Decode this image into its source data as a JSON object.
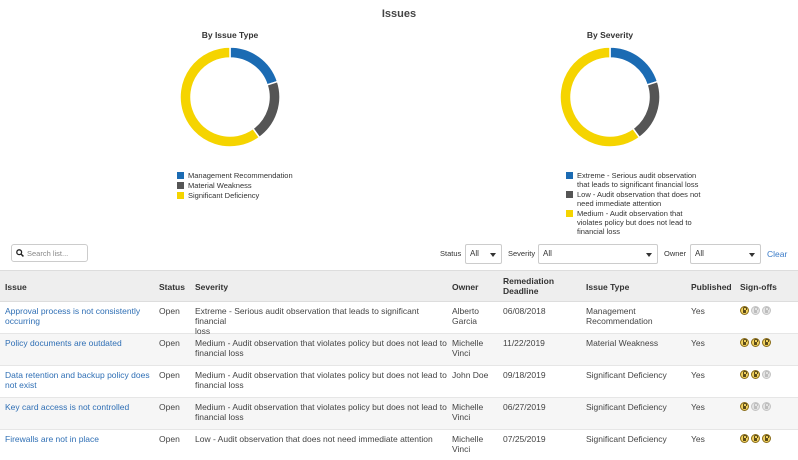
{
  "page_title": "Issues",
  "colors": {
    "blue": "#1b6bb3",
    "gray": "#555555",
    "yellow": "#f5d400",
    "link": "#2f6fb5"
  },
  "chart_data": [
    {
      "type": "pie",
      "title": "By Issue Type",
      "donut": true,
      "legend_position": "bottom",
      "labels": [
        "Management Recommendation",
        "Material Weakness",
        "Significant Deficiency"
      ],
      "values": [
        1,
        1,
        3
      ],
      "colors": [
        "#1b6bb3",
        "#555555",
        "#f5d400"
      ]
    },
    {
      "type": "pie",
      "title": "By Severity",
      "donut": true,
      "legend_position": "bottom",
      "labels": [
        "Extreme - Serious audit observation that leads to significant financial loss",
        "Low - Audit observation that does not need immediate attention",
        "Medium - Audit observation that violates policy but does not lead to financial loss"
      ],
      "values": [
        1,
        1,
        3
      ],
      "colors": [
        "#1b6bb3",
        "#555555",
        "#f5d400"
      ]
    }
  ],
  "toolbar": {
    "search_placeholder": "Search list...",
    "status_label": "Status",
    "status_value": "All",
    "severity_label": "Severity",
    "severity_value": "All",
    "owner_label": "Owner",
    "owner_value": "All",
    "clear_label": "Clear"
  },
  "table": {
    "headers": {
      "issue": "Issue",
      "status": "Status",
      "severity": "Severity",
      "owner": "Owner",
      "deadline_line1": "Remediation",
      "deadline_line2": "Deadline",
      "type": "Issue Type",
      "published": "Published",
      "signoffs": "Sign-offs"
    },
    "rows": [
      {
        "issue_l1": "Approval process is not consistently",
        "issue_l2": "occurring",
        "status": "Open",
        "severity_l1": "Extreme - Serious audit observation that leads to significant financial",
        "severity_l2": "loss",
        "owner_l1": "Alberto",
        "owner_l2": "Garcia",
        "deadline": "06/08/2018",
        "type_l1": "Management",
        "type_l2": "Recommendation",
        "published": "Yes",
        "signoffs": [
          true,
          false,
          false
        ]
      },
      {
        "issue_l1": "Policy documents are outdated",
        "issue_l2": "",
        "status": "Open",
        "severity_l1": "Medium - Audit observation that violates policy but does not lead to",
        "severity_l2": "financial loss",
        "owner_l1": "Michelle",
        "owner_l2": "Vinci",
        "deadline": "11/22/2019",
        "type_l1": "Material Weakness",
        "type_l2": "",
        "published": "Yes",
        "signoffs": [
          true,
          true,
          true
        ]
      },
      {
        "issue_l1": "Data retention and backup policy does",
        "issue_l2": "not exist",
        "status": "Open",
        "severity_l1": "Medium - Audit observation that violates policy but does not lead to",
        "severity_l2": "financial loss",
        "owner_l1": "John Doe",
        "owner_l2": "",
        "deadline": "09/18/2019",
        "type_l1": "Significant Deficiency",
        "type_l2": "",
        "published": "Yes",
        "signoffs": [
          true,
          true,
          false
        ]
      },
      {
        "issue_l1": "Key card access is not controlled",
        "issue_l2": "",
        "status": "Open",
        "severity_l1": "Medium - Audit observation that violates policy but does not lead to",
        "severity_l2": "financial loss",
        "owner_l1": "Michelle",
        "owner_l2": "Vinci",
        "deadline": "06/27/2019",
        "type_l1": "Significant Deficiency",
        "type_l2": "",
        "published": "Yes",
        "signoffs": [
          true,
          false,
          false
        ]
      },
      {
        "issue_l1": "Firewalls are not in place",
        "issue_l2": "",
        "status": "Open",
        "severity_l1": "Low - Audit observation that does not need immediate attention",
        "severity_l2": "",
        "owner_l1": "Michelle",
        "owner_l2": "Vinci",
        "deadline": "07/25/2019",
        "type_l1": "Significant Deficiency",
        "type_l2": "",
        "published": "Yes",
        "signoffs": [
          true,
          true,
          true
        ]
      }
    ]
  }
}
